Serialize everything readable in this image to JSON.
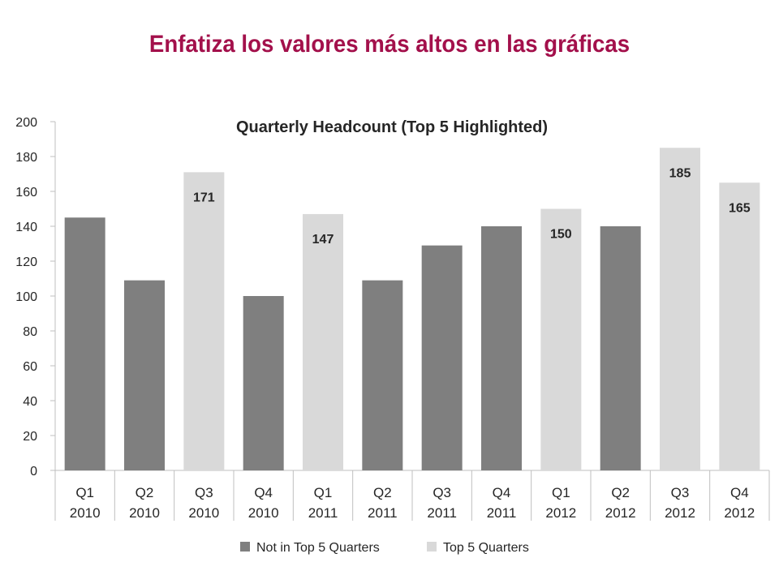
{
  "slide": {
    "title": "Enfatiza los valores más altos en las gráficas"
  },
  "colors": {
    "title": "#a3104b",
    "not_top": "#7f7f7f",
    "top": "#d9d9d9",
    "axis": "#bfbfbf",
    "text": "#262626"
  },
  "chart_data": {
    "type": "bar",
    "title": "Quarterly Headcount  (Top 5 Highlighted)",
    "categories": [
      [
        "Q1",
        "2010"
      ],
      [
        "Q2",
        "2010"
      ],
      [
        "Q3",
        "2010"
      ],
      [
        "Q4",
        "2010"
      ],
      [
        "Q1",
        "2011"
      ],
      [
        "Q2",
        "2011"
      ],
      [
        "Q3",
        "2011"
      ],
      [
        "Q4",
        "2011"
      ],
      [
        "Q1",
        "2012"
      ],
      [
        "Q2",
        "2012"
      ],
      [
        "Q3",
        "2012"
      ],
      [
        "Q4",
        "2012"
      ]
    ],
    "values": [
      145,
      109,
      171,
      100,
      147,
      109,
      129,
      140,
      150,
      140,
      185,
      165
    ],
    "top5": [
      false,
      false,
      true,
      false,
      true,
      false,
      false,
      false,
      true,
      false,
      true,
      true
    ],
    "data_labels": [
      "",
      "",
      "171",
      "",
      "147",
      "",
      "",
      "",
      "150",
      "",
      "185",
      "165"
    ],
    "ylim": [
      0,
      200
    ],
    "yticks": [
      0,
      20,
      40,
      60,
      80,
      100,
      120,
      140,
      160,
      180,
      200
    ],
    "grid": false,
    "legend": {
      "position": "bottom",
      "entries": [
        "Not in Top 5 Quarters",
        "Top 5 Quarters"
      ]
    },
    "xlabel": "",
    "ylabel": ""
  }
}
